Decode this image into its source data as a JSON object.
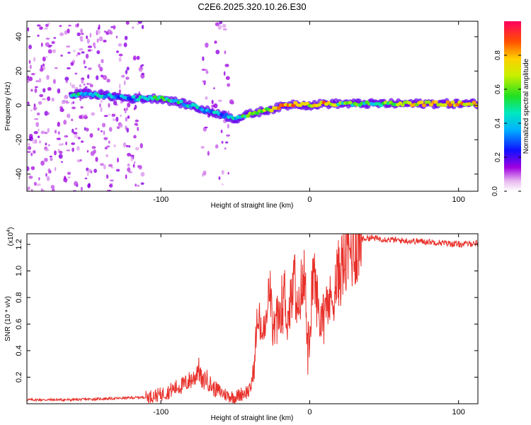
{
  "title": "C2E6.2025.320.10.26.E30",
  "chart_data": [
    {
      "type": "heatmap",
      "xlabel": "Height of straight line (km)",
      "ylabel": "Frequency (Hz)",
      "xlim": [
        -190,
        113
      ],
      "ylim": [
        -50,
        49
      ],
      "xticks": [
        -100,
        0,
        100
      ],
      "yticks": [
        -40,
        -20,
        0,
        20,
        40
      ],
      "colorbar": {
        "label": "Normalized spectral amplitude",
        "range": [
          0,
          1
        ],
        "ticks": [
          "0.0",
          "0.2",
          "0.4",
          "0.6",
          "0.8"
        ],
        "tick_values": [
          0.0,
          0.2,
          0.4,
          0.6,
          0.8
        ]
      },
      "ridge": {
        "x": [
          -160,
          -150,
          -140,
          -130,
          -120,
          -110,
          -100,
          -90,
          -80,
          -70,
          -60,
          -50,
          -40,
          -30,
          -20,
          -10,
          0,
          10,
          20,
          40,
          60,
          80,
          100,
          113
        ],
        "y": [
          6,
          7,
          6,
          5,
          4,
          4,
          4,
          2,
          0,
          -3,
          -5,
          -8,
          -5,
          -3,
          -1,
          1,
          0,
          1,
          1,
          1,
          1,
          1,
          1,
          1
        ],
        "amplitude": [
          0.45,
          0.45,
          0.4,
          0.35,
          0.3,
          0.45,
          0.5,
          0.45,
          0.4,
          0.35,
          0.35,
          0.4,
          0.55,
          0.6,
          0.75,
          0.8,
          0.7,
          0.8,
          0.55,
          0.5,
          0.65,
          0.75,
          0.8,
          0.7
        ]
      }
    },
    {
      "type": "line",
      "xlabel": "Height of straight line (km)",
      "ylabel": "SNR (10 * v/v)",
      "scale_label": "(x10",
      "scale_exp": "4",
      "scale_close": ")",
      "xlim": [
        -190,
        113
      ],
      "ylim": [
        0,
        1.28
      ],
      "xticks": [
        -100,
        0,
        100
      ],
      "yticks": [
        0.2,
        0.4,
        0.6,
        0.8,
        1.0,
        1.2
      ],
      "ytick_labels": [
        "0.2",
        "0.4",
        "0.6",
        "0.8",
        "1.0",
        "1.2"
      ],
      "color": "#e8302a",
      "series": [
        {
          "name": "SNR",
          "x": [
            -190,
            -160,
            -130,
            -110,
            -100,
            -95,
            -90,
            -85,
            -80,
            -77,
            -75,
            -72,
            -70,
            -65,
            -60,
            -55,
            -50,
            -45,
            -40,
            -37,
            -36,
            -35,
            -33,
            -32,
            -30,
            -28,
            -27,
            -26,
            -25,
            -23,
            -20,
            -17,
            -15,
            -12,
            -10,
            -8,
            -6,
            -5,
            -3,
            -2,
            0,
            2,
            5,
            7,
            10,
            13,
            15,
            20,
            25,
            30,
            35,
            40,
            60,
            80,
            100,
            113
          ],
          "y": [
            0.03,
            0.03,
            0.04,
            0.05,
            0.07,
            0.09,
            0.12,
            0.14,
            0.18,
            0.2,
            0.28,
            0.15,
            0.2,
            0.12,
            0.09,
            0.06,
            0.05,
            0.08,
            0.1,
            0.3,
            0.55,
            0.6,
            0.6,
            0.52,
            0.55,
            0.7,
            0.98,
            0.75,
            0.55,
            0.6,
            0.7,
            0.85,
            0.62,
            0.8,
            0.95,
            0.6,
            0.88,
            0.85,
            1.0,
            0.6,
            0.4,
            1.02,
            0.78,
            0.6,
            0.85,
            0.75,
            0.8,
            1.0,
            1.1,
            1.2,
            1.24,
            1.25,
            1.23,
            1.22,
            1.2,
            1.21
          ]
        }
      ]
    }
  ]
}
